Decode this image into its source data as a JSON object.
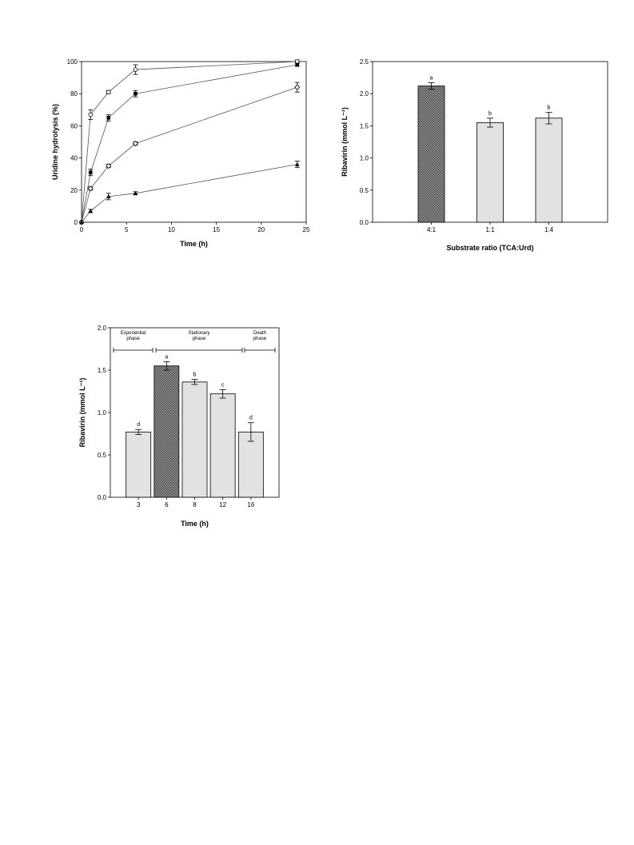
{
  "chart_data": [
    {
      "type": "line",
      "xlabel": "Time (h)",
      "ylabel": "Uridine hydrolysis (%)",
      "xlim": [
        0,
        25
      ],
      "ylim": [
        0,
        100
      ],
      "xticks": [
        "0",
        "5",
        "10",
        "15",
        "20",
        "25"
      ],
      "yticks": [
        "0",
        "20",
        "40",
        "60",
        "80",
        "100"
      ],
      "series": [
        {
          "marker": "open-circle",
          "x": [
            0,
            1,
            3,
            6,
            24
          ],
          "y": [
            0,
            67,
            81,
            95,
            100
          ],
          "err": [
            0,
            3,
            1,
            3,
            1
          ]
        },
        {
          "marker": "filled-square",
          "x": [
            0,
            1,
            3,
            6,
            24
          ],
          "y": [
            0,
            31,
            65,
            80,
            98
          ],
          "err": [
            0,
            2,
            2,
            2,
            1
          ]
        },
        {
          "marker": "open-diamond",
          "x": [
            0,
            1,
            3,
            6,
            24
          ],
          "y": [
            0,
            21,
            35,
            49,
            84
          ],
          "err": [
            0,
            1,
            1,
            1,
            3
          ]
        },
        {
          "marker": "filled-triangle",
          "x": [
            0,
            1,
            3,
            6,
            24
          ],
          "y": [
            0,
            7,
            16,
            18,
            36
          ],
          "err": [
            0,
            1,
            2,
            1,
            2
          ]
        }
      ]
    },
    {
      "type": "bar",
      "xlabel": "Substrate ratio (TCA:Urd)",
      "ylabel": "Ribavirin (mmol L⁻¹)",
      "ylim": [
        0,
        2.5
      ],
      "yticks": [
        "0.0",
        "0.5",
        "1.0",
        "1.5",
        "2.0",
        "2.5"
      ],
      "categories": [
        "4:1",
        "1:1",
        "1:4"
      ],
      "values": [
        2.12,
        1.55,
        1.62
      ],
      "errors": [
        0.05,
        0.07,
        0.09
      ],
      "letters": [
        "a",
        "b",
        "b"
      ],
      "highlight_index": 0
    },
    {
      "type": "bar",
      "xlabel": "Time (h)",
      "ylabel": "Ribavirin (mmol L⁻¹)",
      "ylim": [
        0,
        2.0
      ],
      "yticks": [
        "0.0",
        "0.5",
        "1.0",
        "1.5",
        "2.0"
      ],
      "categories": [
        "3",
        "6",
        "8",
        "12",
        "16"
      ],
      "values": [
        0.77,
        1.55,
        1.36,
        1.22,
        0.77
      ],
      "errors": [
        0.03,
        0.05,
        0.03,
        0.05,
        0.11
      ],
      "letters": [
        "d",
        "a",
        "b",
        "c",
        "d"
      ],
      "highlight_index": 1,
      "phases": [
        {
          "label_line1": "Exponential",
          "label_line2": "phase"
        },
        {
          "label_line1": "Stationary",
          "label_line2": "phase"
        },
        {
          "label_line1": "Death",
          "label_line2": "phase"
        }
      ]
    }
  ]
}
